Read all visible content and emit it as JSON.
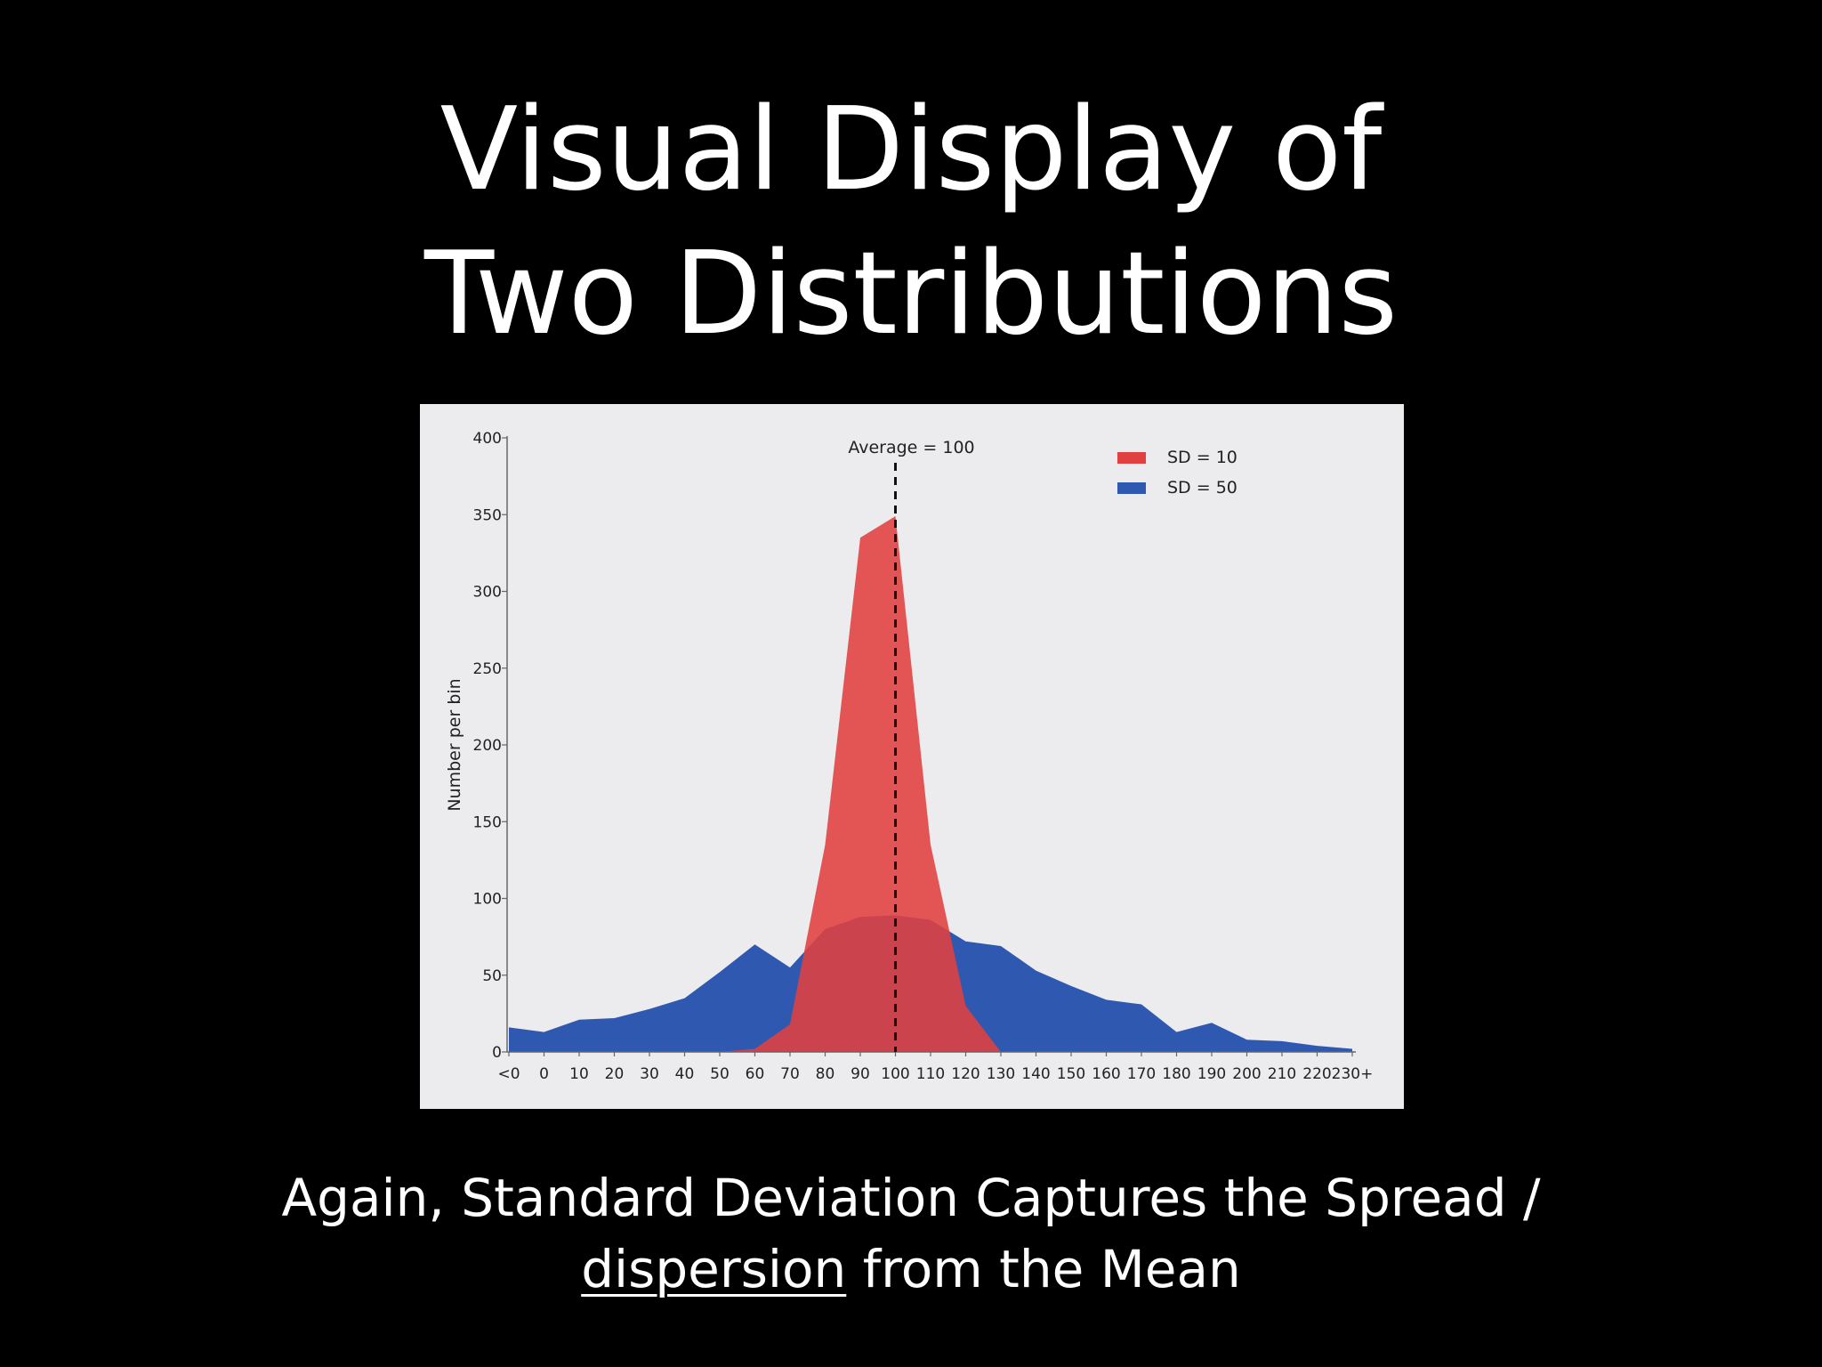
{
  "slide": {
    "title_line1": "Visual Display of",
    "title_line2": "Two Distributions",
    "subtitle_line1": "Again, Standard Deviation Captures the  Spread /",
    "subtitle_word_underlined": "dispersion",
    "subtitle_line2_rest": " from the Mean"
  },
  "chart_data": {
    "type": "area",
    "title": "",
    "xlabel": "",
    "ylabel": "Number per bin",
    "ylim": [
      0,
      400
    ],
    "yticks": [
      0,
      50,
      100,
      150,
      200,
      250,
      300,
      350,
      400
    ],
    "categories": [
      "<0",
      "0",
      "10",
      "20",
      "30",
      "40",
      "50",
      "60",
      "70",
      "80",
      "90",
      "100",
      "110",
      "120",
      "130",
      "140",
      "150",
      "160",
      "170",
      "180",
      "190",
      "200",
      "210",
      "220",
      "230+"
    ],
    "series": [
      {
        "name": "SD = 50",
        "color": "#2f59b0",
        "values": [
          16,
          13,
          21,
          22,
          28,
          35,
          52,
          70,
          55,
          80,
          88,
          89,
          86,
          72,
          69,
          53,
          43,
          34,
          31,
          13,
          19,
          8,
          7,
          4,
          2
        ]
      },
      {
        "name": "SD = 10",
        "color": "#e0403f",
        "values": [
          0,
          0,
          0,
          0,
          0,
          0,
          0,
          2,
          18,
          135,
          335,
          349,
          135,
          30,
          0,
          0,
          0,
          0,
          0,
          0,
          0,
          0,
          0,
          0,
          0
        ]
      }
    ],
    "annotation": {
      "label": "Average = 100",
      "x": 100
    },
    "legend_position": "top-right",
    "grid": false
  }
}
